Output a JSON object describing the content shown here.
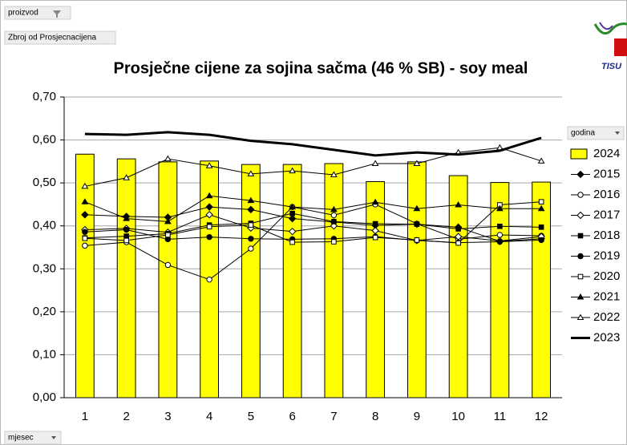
{
  "controls": {
    "filter": "proizvod",
    "measure": "Zbroj od Prosjecnacijena",
    "legend_field": "godina",
    "axis_field": "mjesec"
  },
  "logo_text": "TISU",
  "chart_data": {
    "type": "bar_line",
    "title": "Prosječne cijene za sojina sačma (46 % SB) - soy meal",
    "categories": [
      "1",
      "2",
      "3",
      "4",
      "5",
      "6",
      "7",
      "8",
      "9",
      "10",
      "11",
      "12"
    ],
    "ylim": [
      0,
      0.7
    ],
    "yticks": [
      {
        "value": 0,
        "label": "0,00"
      },
      {
        "value": 0.1,
        "label": "0,10"
      },
      {
        "value": 0.2,
        "label": "0,20"
      },
      {
        "value": 0.3,
        "label": "0,30"
      },
      {
        "value": 0.4,
        "label": "0,40"
      },
      {
        "value": 0.5,
        "label": "0,50"
      },
      {
        "value": 0.6,
        "label": "0,60"
      },
      {
        "value": 0.7,
        "label": "0,70"
      }
    ],
    "grid": true,
    "legend": "right",
    "series": [
      {
        "name": "2024",
        "kind": "bar",
        "color": "#ffff00",
        "values": [
          0.567,
          0.556,
          0.549,
          0.551,
          0.543,
          0.543,
          0.545,
          0.503,
          0.549,
          0.517,
          0.501,
          0.502
        ]
      },
      {
        "name": "2015",
        "kind": "line",
        "marker": "diamond",
        "fill": "#000000",
        "color": "#000000",
        "values": [
          0.426,
          0.422,
          0.42,
          0.444,
          0.438,
          0.417,
          0.409,
          0.401,
          0.404,
          0.397,
          0.364,
          0.37
        ]
      },
      {
        "name": "2016",
        "kind": "line",
        "marker": "circle",
        "fill": "#ffffff",
        "color": "#000000",
        "values": [
          0.354,
          0.362,
          0.309,
          0.275,
          0.347,
          0.444,
          0.425,
          0.45,
          0.405,
          0.369,
          0.379,
          0.377
        ]
      },
      {
        "name": "2017",
        "kind": "line",
        "marker": "diamond",
        "fill": "#ffffff",
        "color": "#000000",
        "values": [
          0.391,
          0.394,
          0.385,
          0.426,
          0.395,
          0.387,
          0.4,
          0.389,
          0.366,
          0.375,
          0.365,
          0.375
        ]
      },
      {
        "name": "2018",
        "kind": "line",
        "marker": "square",
        "fill": "#000000",
        "color": "#000000",
        "values": [
          0.372,
          0.376,
          0.382,
          0.402,
          0.406,
          0.429,
          0.41,
          0.405,
          0.404,
          0.393,
          0.399,
          0.397
        ]
      },
      {
        "name": "2019",
        "kind": "line",
        "marker": "circle",
        "fill": "#000000",
        "color": "#000000",
        "values": [
          0.386,
          0.391,
          0.369,
          0.374,
          0.37,
          0.369,
          0.37,
          0.375,
          0.366,
          0.361,
          0.363,
          0.367
        ]
      },
      {
        "name": "2020",
        "kind": "line",
        "marker": "square",
        "fill": "#ffffff",
        "color": "#000000",
        "values": [
          0.371,
          0.366,
          0.379,
          0.398,
          0.402,
          0.362,
          0.363,
          0.373,
          0.367,
          0.36,
          0.449,
          0.456
        ]
      },
      {
        "name": "2021",
        "kind": "line",
        "marker": "triangle",
        "fill": "#000000",
        "color": "#000000",
        "values": [
          0.456,
          0.417,
          0.41,
          0.47,
          0.459,
          0.444,
          0.438,
          0.455,
          0.44,
          0.449,
          0.44,
          0.44
        ]
      },
      {
        "name": "2022",
        "kind": "line",
        "marker": "triangle",
        "fill": "#ffffff",
        "color": "#000000",
        "values": [
          0.492,
          0.512,
          0.556,
          0.54,
          0.521,
          0.528,
          0.519,
          0.545,
          0.545,
          0.571,
          0.582,
          0.551
        ]
      },
      {
        "name": "2023",
        "kind": "line",
        "marker": "none",
        "width": 3,
        "color": "#000000",
        "values": [
          0.614,
          0.612,
          0.618,
          0.612,
          0.598,
          0.59,
          0.577,
          0.564,
          0.571,
          0.566,
          0.575,
          0.605
        ]
      }
    ]
  }
}
